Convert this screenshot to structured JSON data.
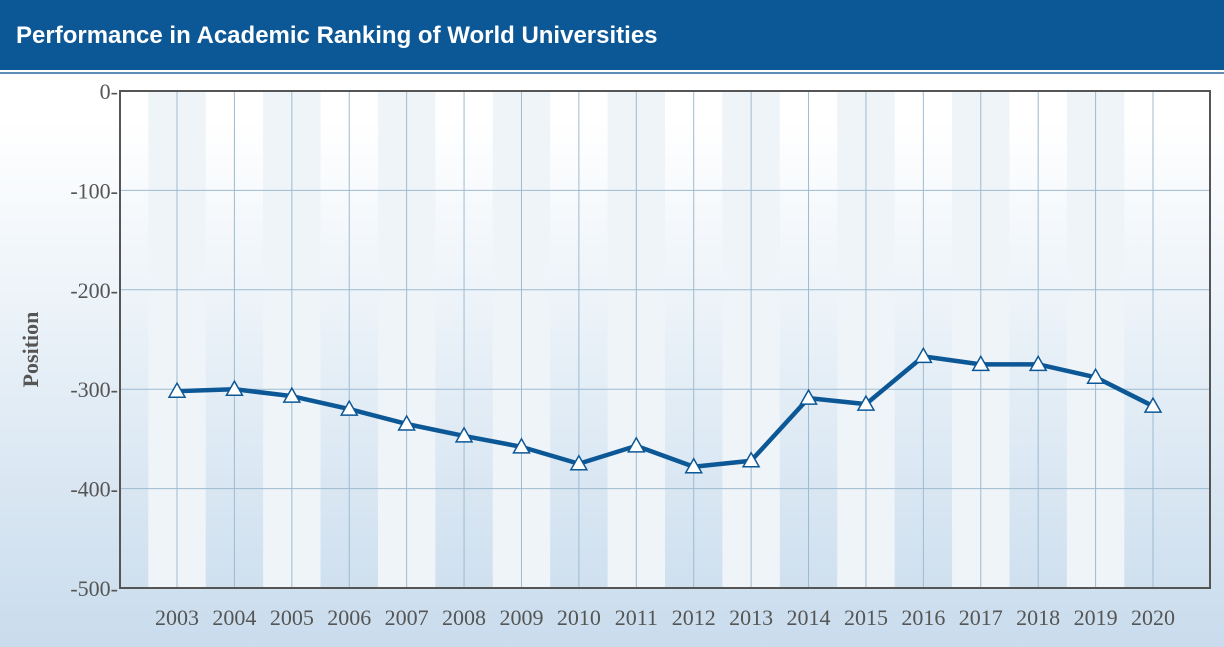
{
  "header": {
    "title": "Performance in Academic Ranking of World Universities"
  },
  "colors": {
    "header_bg": "#0c5796",
    "line": "#0c5796",
    "marker_fill": "#ffffff",
    "grid": "#9dbbd0",
    "frame": "#555555",
    "band": "#eef4f8"
  },
  "chart_data": {
    "type": "line",
    "title": "",
    "xlabel": "",
    "ylabel": "Position",
    "categories": [
      "2003",
      "2004",
      "2005",
      "2006",
      "2007",
      "2008",
      "2009",
      "2010",
      "2011",
      "2012",
      "2013",
      "2014",
      "2015",
      "2016",
      "2017",
      "2018",
      "2019",
      "2020"
    ],
    "series": [
      {
        "values": [
          -302,
          -300,
          -307,
          -320,
          -335,
          -347,
          -358,
          -375,
          -357,
          -378,
          -372,
          -309,
          -315,
          -267,
          -275,
          -275,
          -288,
          -317
        ],
        "marker": "triangle"
      }
    ],
    "yticks": [
      0,
      -100,
      -200,
      -300,
      -400,
      -500
    ],
    "ytick_labels": [
      "0-",
      "-100-",
      "-200-",
      "-300-",
      "-400-",
      "-500-"
    ],
    "ylim": [
      -500,
      0
    ],
    "grid": true,
    "legend": "none"
  }
}
